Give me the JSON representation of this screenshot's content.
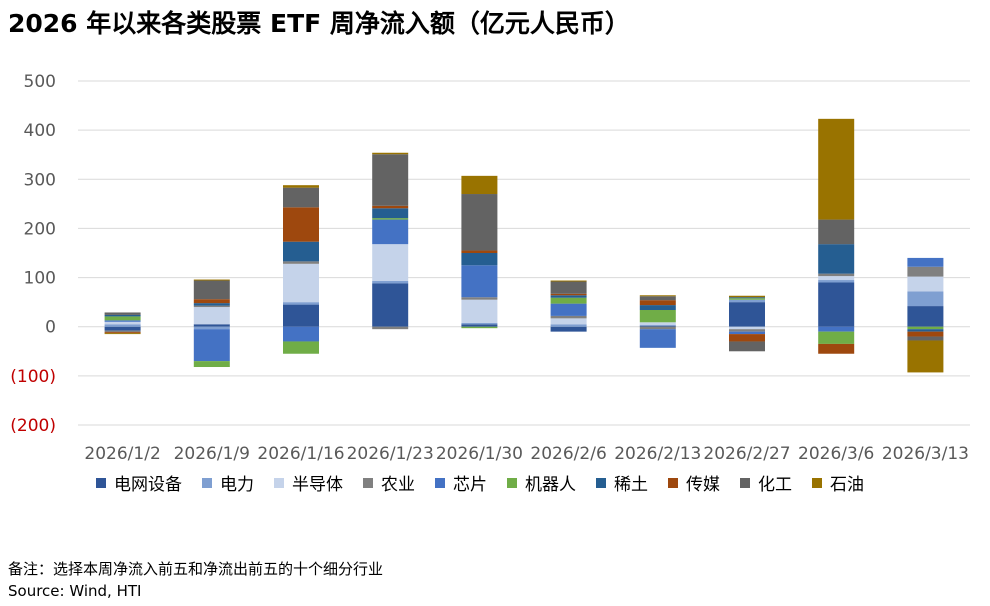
{
  "title": "2026 年以来各类股票 ETF 周净流入额（亿元人民币）",
  "note": "备注：选择本周净流入前五和净流出前五的十个细分行业",
  "source": "Source: Wind, HTI",
  "chart_data": {
    "type": "bar",
    "stacked": true,
    "title": "2026 年以来各类股票 ETF 周净流入额（亿元人民币）",
    "categories": [
      "2026/1/2",
      "2026/1/9",
      "2026/1/16",
      "2026/1/23",
      "2026/1/30",
      "2026/2/6",
      "2026/2/13",
      "2026/2/27",
      "2026/3/6",
      "2026/3/13"
    ],
    "ylim": [
      -200,
      500
    ],
    "yticks": [
      500,
      400,
      300,
      200,
      100,
      0,
      -100,
      -200
    ],
    "ytick_labels": [
      "500",
      "400",
      "300",
      "200",
      "100",
      "0",
      "(100)",
      "(200)"
    ],
    "negative_tick_color": "#c00000",
    "grid": true,
    "legend_position": "bottom",
    "series": [
      {
        "name": "电网设备",
        "color": "#2f5597",
        "values": [
          -8,
          5,
          45,
          88,
          5,
          -10,
          2,
          50,
          90,
          42
        ]
      },
      {
        "name": "电力",
        "color": "#7f9fd1",
        "values": [
          5,
          -5,
          5,
          5,
          3,
          5,
          2,
          5,
          5,
          30
        ]
      },
      {
        "name": "半导体",
        "color": "#c5d3ea",
        "values": [
          5,
          35,
          78,
          75,
          47,
          12,
          5,
          -5,
          8,
          30
        ]
      },
      {
        "name": "农业",
        "color": "#808080",
        "values": [
          -3,
          3,
          5,
          -5,
          5,
          5,
          -5,
          -5,
          5,
          20
        ]
      },
      {
        "name": "芯片",
        "color": "#4472c4",
        "values": [
          3,
          -65,
          -30,
          50,
          65,
          25,
          -38,
          -5,
          -10,
          18
        ]
      },
      {
        "name": "机器人",
        "color": "#70ad47",
        "values": [
          8,
          -12,
          -25,
          3,
          -3,
          12,
          25,
          3,
          -25,
          -5
        ]
      },
      {
        "name": "稀土",
        "color": "#255e91",
        "values": [
          3,
          5,
          40,
          20,
          25,
          5,
          10,
          2,
          60,
          -5
        ]
      },
      {
        "name": "传媒",
        "color": "#9e480e",
        "values": [
          -2,
          8,
          70,
          5,
          5,
          3,
          10,
          -15,
          -20,
          -10
        ]
      },
      {
        "name": "化工",
        "color": "#636363",
        "values": [
          5,
          38,
          40,
          105,
          115,
          25,
          8,
          -20,
          50,
          -8
        ]
      },
      {
        "name": "石油",
        "color": "#997300",
        "values": [
          -2,
          2,
          5,
          3,
          37,
          2,
          2,
          3,
          205,
          -65
        ]
      }
    ]
  }
}
